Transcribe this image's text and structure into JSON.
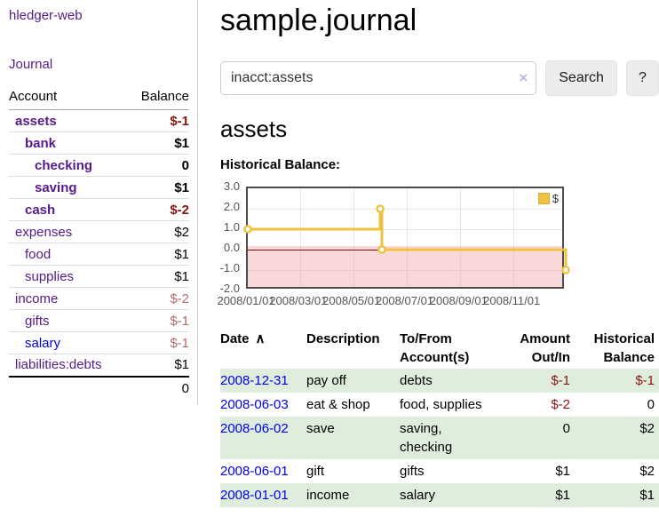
{
  "app": {
    "brand": "hledger-web"
  },
  "colors": {
    "link_purple": "#551a8b",
    "link_blue": "#0000ee",
    "negative_strong": "#8b1510",
    "negative_soft": "#b36a6a",
    "row_green": "#dfeedc",
    "series_gold": "#edc240",
    "negative_region_pink": "#f8d8d8",
    "zero_line_red": "#8b0000",
    "plot_border": "#4d4d4d"
  },
  "sidebar": {
    "nav_journal": "Journal",
    "table": {
      "headers": [
        "Account",
        "Balance"
      ],
      "rows": [
        {
          "account": "assets",
          "balance": "$-1",
          "level": 1,
          "bold": true,
          "negative": "strong"
        },
        {
          "account": "bank",
          "balance": "$1",
          "level": 2,
          "bold": true
        },
        {
          "account": "checking",
          "balance": "0",
          "level": 3,
          "bold": true
        },
        {
          "account": "saving",
          "balance": "$1",
          "level": 3,
          "bold": true
        },
        {
          "account": "cash",
          "balance": "$-2",
          "level": 2,
          "bold": true,
          "negative": "strong"
        },
        {
          "account": "expenses",
          "balance": "$2",
          "level": 1
        },
        {
          "account": "food",
          "balance": "$1",
          "level": 2
        },
        {
          "account": "supplies",
          "balance": "$1",
          "level": 2
        },
        {
          "account": "income",
          "balance": "$-2",
          "level": 1,
          "negative": "soft"
        },
        {
          "account": "gifts",
          "balance": "$-1",
          "level": 2,
          "negative": "soft"
        },
        {
          "account": "salary",
          "balance": "$-1",
          "level": 2,
          "negative": "soft",
          "link": "unvisited"
        },
        {
          "account": "liabilities:debts",
          "balance": "$1",
          "level": 1
        }
      ],
      "total": "0"
    }
  },
  "main": {
    "title": "sample.journal",
    "search": {
      "value": "inacct:assets",
      "clear_icon": "×",
      "button": "Search",
      "help": "?"
    },
    "account_heading": "assets",
    "chart_heading": "Historical Balance:",
    "register": {
      "headers": {
        "date": "Date",
        "sort_icon": "∧",
        "description": "Description",
        "accounts": "To/From Account(s)",
        "amount": "Amount Out/In",
        "balance": "Historical Balance"
      },
      "rows": [
        {
          "date": "2008-12-31",
          "description": "pay off",
          "accounts": "debts",
          "amount": "$-1",
          "amount_negative": true,
          "balance": "$-1",
          "balance_negative": true
        },
        {
          "date": "2008-06-03",
          "description": "eat & shop",
          "accounts": "food, supplies",
          "amount": "$-2",
          "amount_negative": true,
          "balance": "0"
        },
        {
          "date": "2008-06-02",
          "description": "save",
          "accounts": "saving, checking",
          "amount": "0",
          "balance": "$2"
        },
        {
          "date": "2008-06-01",
          "description": "gift",
          "accounts": "gifts",
          "amount": "$1",
          "balance": "$2"
        },
        {
          "date": "2008-01-01",
          "description": "income",
          "accounts": "salary",
          "amount": "$1",
          "balance": "$1"
        }
      ]
    }
  },
  "chart_data": {
    "type": "line",
    "style": "step",
    "title": "Historical Balance:",
    "series": [
      {
        "name": "$",
        "color": "#edc240",
        "points": [
          [
            "2008/01/01",
            1
          ],
          [
            "2008/06/01",
            2
          ],
          [
            "2008/06/03",
            0
          ],
          [
            "2008/12/31",
            -1
          ]
        ]
      }
    ],
    "x_range": [
      "2008/01/01",
      "2008/12/31"
    ],
    "x_ticks": [
      "2008/01/01",
      "2008/03/01",
      "2008/05/01",
      "2008/07/01",
      "2008/09/01",
      "2008/11/01"
    ],
    "y_ticks": [
      "3.0",
      "2.0",
      "1.0",
      "0.0",
      "-1.0",
      "-2.0"
    ],
    "y_tick_values": [
      3,
      2,
      1,
      0,
      -1,
      -2
    ],
    "ylim": [
      -2,
      3
    ],
    "grid": true,
    "legend_position": "top-right",
    "negative_region_shaded": true
  }
}
